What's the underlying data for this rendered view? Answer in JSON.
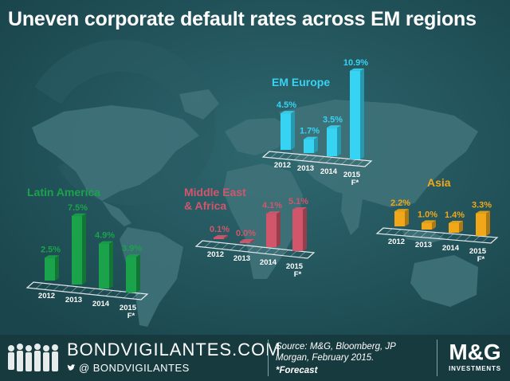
{
  "title": "Uneven corporate default rates across EM regions",
  "colors": {
    "background": "#1f4f56",
    "map": "#3d7077",
    "emerald": "#1aa34a",
    "red": "#d2566b",
    "cyan": "#37d3f3",
    "amber": "#f0a81a"
  },
  "chart_data": [
    {
      "type": "bar",
      "title": "EM Europe",
      "categories": [
        "2012",
        "2013",
        "2014",
        "2015 F*"
      ],
      "values": [
        4.5,
        1.7,
        3.5,
        10.9
      ],
      "labels": [
        "4.5%",
        "1.7%",
        "3.5%",
        "10.9%"
      ],
      "unit": "%",
      "color": "#37d3f3"
    },
    {
      "type": "bar",
      "title": "Latin America",
      "categories": [
        "2012",
        "2013",
        "2014",
        "2015 F*"
      ],
      "values": [
        2.5,
        7.5,
        4.9,
        3.9
      ],
      "labels": [
        "2.5%",
        "7.5%",
        "4.9%",
        "3.9%"
      ],
      "unit": "%",
      "color": "#1aa34a"
    },
    {
      "type": "bar",
      "title": "Middle East & Africa",
      "categories": [
        "2012",
        "2013",
        "2014",
        "2015 F*"
      ],
      "values": [
        0.1,
        0.0,
        4.1,
        5.1
      ],
      "labels": [
        "0.1%",
        "0.0%",
        "4.1%",
        "5.1%"
      ],
      "unit": "%",
      "color": "#d2566b"
    },
    {
      "type": "bar",
      "title": "Asia",
      "categories": [
        "2012",
        "2013",
        "2014",
        "2015 F*"
      ],
      "values": [
        2.2,
        1.0,
        1.4,
        3.3
      ],
      "labels": [
        "2.2%",
        "1.0%",
        "1.4%",
        "3.3%"
      ],
      "unit": "%",
      "color": "#f0a81a"
    }
  ],
  "footer": {
    "brand": "BONDVIGILANTES.COM",
    "handle": "BONDVIGILANTES",
    "handle_icons": "twitter-icon",
    "source": "Source: M&G, Bloomberg, JP Morgan, February 2015.",
    "forecast_note": "*Forecast",
    "logo_main": "M&G",
    "logo_sub": "INVESTMENTS"
  }
}
